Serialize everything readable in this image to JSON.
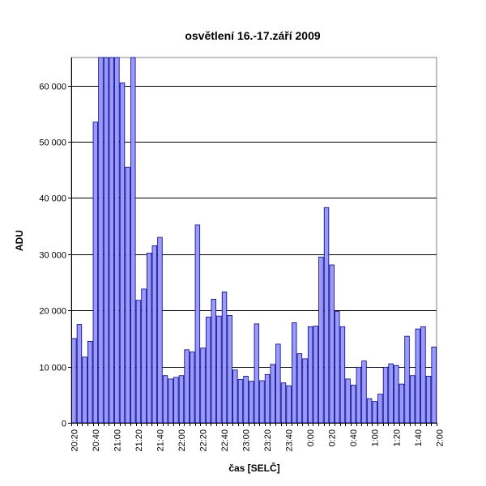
{
  "chart_data": {
    "type": "bar",
    "title": "osvětlení 16.-17.září 2009",
    "xlabel": "čas [SELČ]",
    "ylabel": "ADU",
    "ylim": [
      0,
      65000
    ],
    "y_ticks": [
      0,
      10000,
      20000,
      30000,
      40000,
      50000,
      60000
    ],
    "y_tick_labels": [
      "0",
      "10 000",
      "20 000",
      "30 000",
      "40 000",
      "50 000",
      "60 000"
    ],
    "x_tick_labels": [
      "20:20",
      "20:40",
      "21:00",
      "21:20",
      "21:40",
      "22:00",
      "22:20",
      "22:40",
      "23:00",
      "23:20",
      "23:40",
      "0:00",
      "0:20",
      "0:40",
      "1:00",
      "1:20",
      "1:40",
      "2:00"
    ],
    "x_tick_every": 4,
    "grid": "horizontal",
    "colors": {
      "bar_fill": "#9999FF",
      "bar_stroke": "#000080",
      "plot_bg": "#FFFFFF",
      "grid": "#000000"
    },
    "values": [
      15000,
      17500,
      11700,
      14500,
      53500,
      65000,
      65000,
      65000,
      65000,
      60500,
      45500,
      65000,
      21800,
      23800,
      30200,
      31500,
      33000,
      8400,
      7800,
      8100,
      8400,
      13000,
      12600,
      35200,
      13300,
      18800,
      22000,
      19000,
      23300,
      19100,
      9400,
      7700,
      8300,
      7400,
      17600,
      7500,
      8600,
      10400,
      14000,
      7100,
      6600,
      17800,
      12300,
      11400,
      17100,
      17200,
      29500,
      38300,
      28100,
      19800,
      17100,
      7800,
      6700,
      9900,
      11000,
      4300,
      3800,
      5100,
      9900,
      10500,
      10200,
      6900,
      15400,
      8400,
      16700,
      17100,
      8300,
      13500
    ]
  }
}
